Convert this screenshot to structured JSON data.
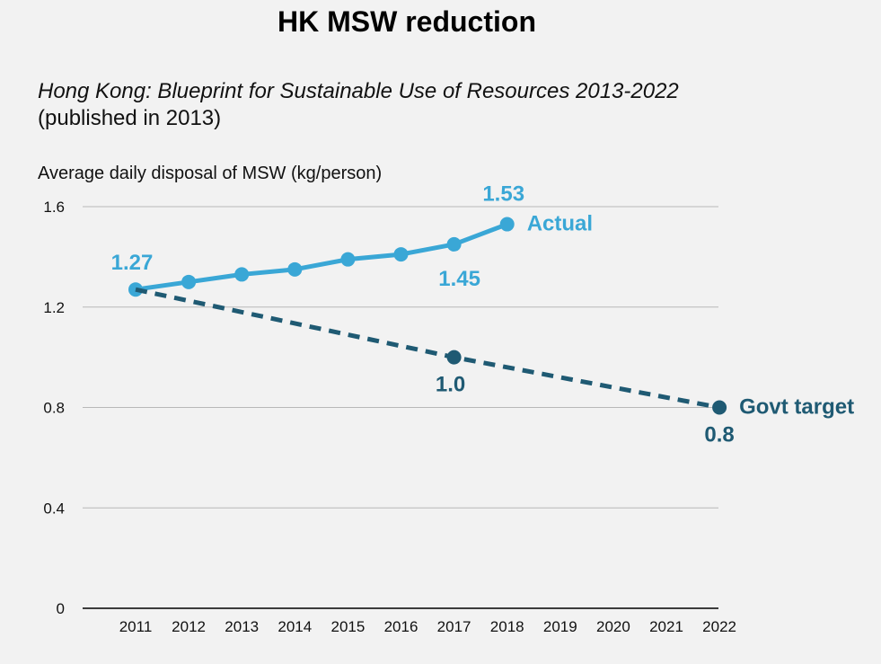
{
  "title": "HK MSW reduction",
  "subtitle_italic": "Hong Kong: Blueprint for Sustainable Use of Resources 2013-2022",
  "subtitle_plain": "(published in 2013)",
  "chart_data": {
    "type": "line",
    "ylabel": "Average daily disposal of MSW (kg/person)",
    "xlabel": "",
    "ylim": [
      0,
      1.6
    ],
    "yticks": [
      0,
      0.4,
      0.8,
      1.2,
      1.6
    ],
    "ytick_labels": [
      "0",
      "0.4",
      "0.8",
      "1.2",
      "1.6"
    ],
    "categories": [
      "2011",
      "2012",
      "2013",
      "2014",
      "2015",
      "2016",
      "2017",
      "2018",
      "2019",
      "2020",
      "2021",
      "2022"
    ],
    "grid": true,
    "series": [
      {
        "name": "Actual",
        "color": "#3aa7d6",
        "style": "solid",
        "x": [
          "2011",
          "2012",
          "2013",
          "2014",
          "2015",
          "2016",
          "2017",
          "2018"
        ],
        "values": [
          1.27,
          1.3,
          1.33,
          1.35,
          1.39,
          1.41,
          1.45,
          1.53
        ]
      },
      {
        "name": "Govt target",
        "color": "#1f5a73",
        "style": "dashed",
        "x": [
          "2011",
          "2017",
          "2022"
        ],
        "values": [
          1.27,
          1.0,
          0.8
        ]
      }
    ],
    "annotations": [
      {
        "text": "1.27",
        "series": 0,
        "x": "2011"
      },
      {
        "text": "1.45",
        "series": 0,
        "x": "2017"
      },
      {
        "text": "1.53",
        "series": 0,
        "x": "2018"
      },
      {
        "text": "1.0",
        "series": 1,
        "x": "2017"
      },
      {
        "text": "0.8",
        "series": 1,
        "x": "2022"
      }
    ]
  }
}
